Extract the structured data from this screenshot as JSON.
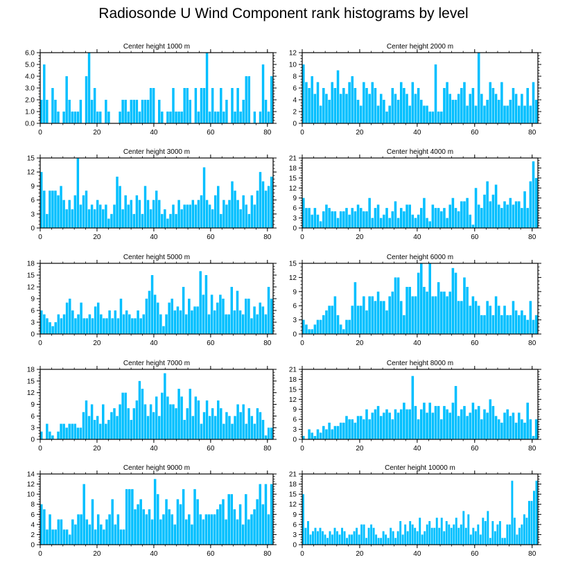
{
  "page": {
    "title": "Radiosonde U Wind Component rank histograms by level"
  },
  "colors": {
    "bar": "#00BFFF",
    "axis": "#000000",
    "text": "#000000"
  },
  "chart_data": [
    {
      "type": "bar",
      "title": "Center height 1000 m",
      "xlabel": "",
      "ylabel": "",
      "xlim": [
        0,
        82
      ],
      "ylim": [
        0,
        6
      ],
      "yticks": [
        0,
        1,
        2,
        3,
        4,
        5,
        6
      ],
      "ytick_labels": [
        "0.0",
        "1.0",
        "2.0",
        "3.0",
        "4.0",
        "5.0",
        "6.0"
      ],
      "xticks": [
        0,
        20,
        40,
        60,
        80
      ],
      "xtick_labels": [
        "0",
        "20",
        "40",
        "60",
        "80"
      ],
      "values": [
        2,
        5,
        2,
        0,
        3,
        2,
        1,
        0,
        1,
        4,
        2,
        1,
        1,
        1,
        2,
        0,
        4,
        6,
        2,
        3,
        1,
        1,
        0,
        2,
        1,
        0,
        0,
        0,
        1,
        2,
        2,
        1,
        2,
        2,
        2,
        1,
        2,
        2,
        2,
        3,
        3,
        0,
        2,
        1,
        0,
        1,
        1,
        3,
        1,
        1,
        1,
        3,
        3,
        2,
        0,
        3,
        1,
        3,
        3,
        6,
        1,
        3,
        1,
        1,
        3,
        1,
        2,
        0,
        3,
        1,
        3,
        1,
        2,
        4,
        4,
        0,
        1,
        0,
        1,
        5,
        2,
        1,
        4
      ]
    },
    {
      "type": "bar",
      "title": "Center height 2000 m",
      "xlabel": "",
      "ylabel": "",
      "xlim": [
        0,
        82
      ],
      "ylim": [
        0,
        12
      ],
      "yticks": [
        0,
        2,
        4,
        6,
        8,
        10,
        12
      ],
      "ytick_labels": [
        "0",
        "2",
        "4",
        "6",
        "8",
        "10",
        "12"
      ],
      "xticks": [
        0,
        20,
        40,
        60,
        80
      ],
      "xtick_labels": [
        "0",
        "20",
        "40",
        "60",
        "80"
      ],
      "values": [
        10,
        7,
        6,
        8,
        5,
        7,
        3,
        6,
        5,
        4,
        7,
        6,
        9,
        5,
        6,
        5,
        7,
        8,
        6,
        4,
        3,
        7,
        6,
        5,
        7,
        6,
        3,
        5,
        4,
        2,
        3,
        6,
        5,
        4,
        7,
        6,
        5,
        3,
        7,
        5,
        6,
        4,
        3,
        3,
        2,
        2,
        10,
        2,
        2,
        6,
        7,
        5,
        4,
        4,
        5,
        6,
        7,
        3,
        5,
        6,
        3,
        12,
        5,
        3,
        4,
        7,
        6,
        5,
        4,
        7,
        3,
        3,
        4,
        6,
        5,
        3,
        5,
        3,
        6,
        3,
        7,
        4
      ]
    },
    {
      "type": "bar",
      "title": "Center height 3000 m",
      "xlabel": "",
      "ylabel": "",
      "xlim": [
        0,
        82
      ],
      "ylim": [
        0,
        15
      ],
      "yticks": [
        0,
        3,
        6,
        9,
        12,
        15
      ],
      "ytick_labels": [
        "0",
        "3",
        "6",
        "9",
        "12",
        "15"
      ],
      "xticks": [
        0,
        20,
        40,
        60,
        80
      ],
      "xtick_labels": [
        "0",
        "20",
        "40",
        "60",
        "80"
      ],
      "values": [
        12,
        8,
        3,
        8,
        8,
        8,
        7,
        9,
        6,
        4,
        6,
        4,
        7,
        15,
        5,
        7,
        8,
        4,
        5,
        4,
        6,
        5,
        4,
        5,
        2,
        3,
        5,
        11,
        9,
        4,
        7,
        5,
        6,
        3,
        7,
        6,
        3,
        9,
        6,
        4,
        6,
        8,
        6,
        3,
        4,
        2,
        3,
        5,
        3,
        6,
        4,
        5,
        5,
        5,
        6,
        5,
        6,
        7,
        13,
        6,
        5,
        4,
        7,
        9,
        3,
        6,
        5,
        6,
        10,
        8,
        6,
        4,
        7,
        5,
        3,
        7,
        5,
        8,
        12,
        10,
        8,
        9,
        11
      ]
    },
    {
      "type": "bar",
      "title": "Center height 4000 m",
      "xlabel": "",
      "ylabel": "",
      "xlim": [
        0,
        82
      ],
      "ylim": [
        0,
        21
      ],
      "yticks": [
        0,
        3,
        6,
        9,
        12,
        15,
        18,
        21
      ],
      "ytick_labels": [
        "0",
        "3",
        "6",
        "9",
        "12",
        "15",
        "18",
        "21"
      ],
      "xticks": [
        0,
        20,
        40,
        60,
        80
      ],
      "xtick_labels": [
        "0",
        "20",
        "40",
        "60",
        "80"
      ],
      "values": [
        9,
        6,
        6,
        4,
        6,
        4,
        2,
        5,
        7,
        6,
        5,
        5,
        3,
        5,
        5,
        6,
        4,
        6,
        5,
        7,
        6,
        5,
        5,
        9,
        3,
        6,
        7,
        3,
        4,
        6,
        3,
        5,
        8,
        3,
        6,
        5,
        7,
        7,
        4,
        3,
        4,
        6,
        9,
        3,
        2,
        7,
        6,
        6,
        5,
        6,
        3,
        7,
        9,
        6,
        5,
        8,
        8,
        9,
        4,
        1,
        12,
        7,
        6,
        10,
        14,
        8,
        10,
        13,
        7,
        6,
        8,
        7,
        9,
        7,
        8,
        8,
        6,
        11,
        6,
        14,
        20,
        15
      ]
    },
    {
      "type": "bar",
      "title": "Center height 5000 m",
      "xlabel": "",
      "ylabel": "",
      "xlim": [
        0,
        82
      ],
      "ylim": [
        0,
        18
      ],
      "yticks": [
        0,
        3,
        6,
        9,
        12,
        15,
        18
      ],
      "ytick_labels": [
        "0",
        "3",
        "6",
        "9",
        "12",
        "15",
        "18"
      ],
      "xticks": [
        0,
        20,
        40,
        60,
        80
      ],
      "xtick_labels": [
        "0",
        "20",
        "40",
        "60",
        "80"
      ],
      "values": [
        6,
        5,
        4,
        3,
        2,
        3,
        5,
        4,
        5,
        8,
        9,
        6,
        4,
        5,
        8,
        4,
        4,
        5,
        4,
        7,
        8,
        5,
        4,
        4,
        6,
        4,
        6,
        4,
        9,
        5,
        6,
        5,
        4,
        4,
        6,
        4,
        5,
        9,
        11,
        15,
        10,
        8,
        5,
        2,
        5,
        8,
        9,
        6,
        7,
        6,
        12,
        5,
        9,
        6,
        7,
        7,
        16,
        10,
        15,
        5,
        10,
        6,
        8,
        10,
        9,
        5,
        5,
        12,
        6,
        11,
        6,
        5,
        9,
        9,
        4,
        7,
        5,
        8,
        7,
        5,
        12,
        9
      ]
    },
    {
      "type": "bar",
      "title": "Center height 6000 m",
      "xlabel": "",
      "ylabel": "",
      "xlim": [
        0,
        82
      ],
      "ylim": [
        0,
        15
      ],
      "yticks": [
        0,
        3,
        6,
        9,
        12,
        15
      ],
      "ytick_labels": [
        "0",
        "3",
        "6",
        "9",
        "12",
        "15"
      ],
      "xticks": [
        0,
        20,
        40,
        60,
        80
      ],
      "xtick_labels": [
        "0",
        "20",
        "40",
        "60",
        "80"
      ],
      "values": [
        3,
        2,
        1,
        1,
        2,
        3,
        3,
        4,
        5,
        6,
        6,
        8,
        4,
        2,
        1,
        3,
        3,
        6,
        11,
        6,
        6,
        8,
        5,
        8,
        8,
        7,
        9,
        7,
        7,
        5,
        8,
        9,
        12,
        12,
        7,
        4,
        10,
        10,
        8,
        8,
        13,
        15,
        10,
        9,
        15,
        8,
        8,
        11,
        9,
        9,
        8,
        9,
        14,
        13,
        7,
        7,
        12,
        10,
        6,
        8,
        7,
        6,
        4,
        4,
        7,
        6,
        4,
        8,
        6,
        4,
        6,
        4,
        4,
        7,
        5,
        4,
        5,
        4,
        3,
        7,
        3,
        4
      ]
    },
    {
      "type": "bar",
      "title": "Center height 7000 m",
      "xlabel": "",
      "ylabel": "",
      "xlim": [
        0,
        82
      ],
      "ylim": [
        0,
        18
      ],
      "yticks": [
        0,
        3,
        6,
        9,
        12,
        15,
        18
      ],
      "ytick_labels": [
        "0",
        "3",
        "6",
        "9",
        "12",
        "15",
        "18"
      ],
      "xticks": [
        0,
        20,
        40,
        60,
        80
      ],
      "xtick_labels": [
        "0",
        "20",
        "40",
        "60",
        "80"
      ],
      "values": [
        2,
        0,
        4,
        2,
        1,
        0,
        2,
        4,
        4,
        3,
        4,
        4,
        4,
        3,
        3,
        7,
        10,
        6,
        9,
        5,
        6,
        4,
        9,
        4,
        5,
        7,
        8,
        6,
        9,
        12,
        12,
        8,
        5,
        8,
        10,
        15,
        13,
        9,
        6,
        9,
        7,
        11,
        6,
        12,
        17,
        11,
        9,
        9,
        8,
        13,
        11,
        5,
        8,
        13,
        6,
        11,
        10,
        4,
        7,
        10,
        6,
        8,
        6,
        10,
        8,
        4,
        7,
        6,
        4,
        6,
        9,
        7,
        9,
        4,
        8,
        6,
        4,
        8,
        7,
        5,
        1,
        3,
        3
      ]
    },
    {
      "type": "bar",
      "title": "Center height 8000 m",
      "xlabel": "",
      "ylabel": "",
      "xlim": [
        0,
        82
      ],
      "ylim": [
        0,
        21
      ],
      "yticks": [
        0,
        3,
        6,
        9,
        12,
        15,
        18,
        21
      ],
      "ytick_labels": [
        "0",
        "3",
        "6",
        "9",
        "12",
        "15",
        "18",
        "21"
      ],
      "xticks": [
        0,
        20,
        40,
        60,
        80
      ],
      "xtick_labels": [
        "0",
        "20",
        "40",
        "60",
        "80"
      ],
      "values": [
        1,
        0,
        3,
        2,
        1,
        3,
        2,
        4,
        3,
        5,
        3,
        4,
        4,
        5,
        5,
        7,
        6,
        6,
        5,
        7,
        7,
        6,
        9,
        6,
        8,
        9,
        10,
        7,
        8,
        9,
        8,
        6,
        9,
        8,
        9,
        11,
        9,
        9,
        19,
        10,
        6,
        9,
        11,
        8,
        11,
        8,
        10,
        10,
        6,
        10,
        9,
        8,
        11,
        16,
        7,
        9,
        10,
        7,
        8,
        11,
        9,
        10,
        6,
        9,
        8,
        12,
        10,
        7,
        6,
        5,
        8,
        9,
        7,
        8,
        5,
        8,
        6,
        5,
        11,
        6,
        1,
        6
      ]
    },
    {
      "type": "bar",
      "title": "Center height 9000 m",
      "xlabel": "",
      "ylabel": "",
      "xlim": [
        0,
        82
      ],
      "ylim": [
        0,
        14
      ],
      "yticks": [
        0,
        2,
        4,
        6,
        8,
        10,
        12,
        14
      ],
      "ytick_labels": [
        "0",
        "2",
        "4",
        "6",
        "8",
        "10",
        "12",
        "14"
      ],
      "xticks": [
        0,
        20,
        40,
        60,
        80
      ],
      "xtick_labels": [
        "0",
        "20",
        "40",
        "60",
        "80"
      ],
      "values": [
        8,
        7,
        3,
        6,
        3,
        3,
        5,
        5,
        3,
        3,
        2,
        5,
        4,
        6,
        6,
        12,
        5,
        4,
        9,
        3,
        6,
        4,
        3,
        5,
        6,
        9,
        4,
        6,
        3,
        3,
        11,
        11,
        11,
        7,
        8,
        9,
        7,
        6,
        7,
        5,
        13,
        10,
        5,
        6,
        9,
        7,
        6,
        4,
        9,
        8,
        11,
        5,
        6,
        4,
        11,
        9,
        6,
        5,
        6,
        6,
        6,
        6,
        7,
        8,
        9,
        5,
        10,
        10,
        7,
        5,
        8,
        4,
        10,
        5,
        6,
        7,
        9,
        12,
        8,
        12,
        6,
        12
      ]
    },
    {
      "type": "bar",
      "title": "Center height 10000 m",
      "xlabel": "",
      "ylabel": "",
      "xlim": [
        0,
        82
      ],
      "ylim": [
        0,
        21
      ],
      "yticks": [
        0,
        3,
        6,
        9,
        12,
        15,
        18,
        21
      ],
      "ytick_labels": [
        "0",
        "3",
        "6",
        "9",
        "12",
        "15",
        "18",
        "21"
      ],
      "xticks": [
        0,
        20,
        40,
        60,
        80
      ],
      "xtick_labels": [
        "0",
        "20",
        "40",
        "60",
        "80"
      ],
      "values": [
        15,
        5,
        7,
        3,
        4,
        5,
        4,
        5,
        4,
        3,
        2,
        4,
        3,
        5,
        4,
        3,
        5,
        4,
        2,
        3,
        3,
        4,
        5,
        3,
        6,
        6,
        2,
        5,
        6,
        5,
        3,
        2,
        2,
        4,
        3,
        2,
        5,
        4,
        2,
        4,
        7,
        3,
        6,
        4,
        7,
        6,
        5,
        4,
        8,
        3,
        4,
        6,
        7,
        5,
        5,
        8,
        5,
        8,
        4,
        7,
        6,
        5,
        6,
        8,
        5,
        6,
        10,
        5,
        9,
        3,
        5,
        4,
        6,
        3,
        8,
        7,
        10,
        2,
        7,
        4,
        6,
        7,
        2,
        2,
        6,
        6,
        19,
        8,
        3,
        5,
        6,
        9,
        8,
        13,
        13,
        16,
        19
      ]
    }
  ]
}
